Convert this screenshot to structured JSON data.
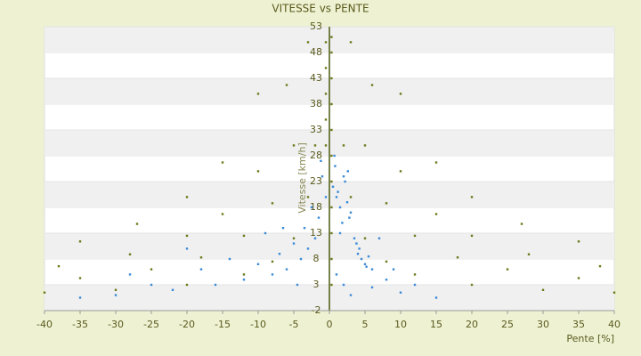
{
  "chart_data": {
    "type": "scatter",
    "title": "VITESSE vs PENTE",
    "x_label": "Pente [%]",
    "y_label": "Vitesse [km/h]",
    "xlim": [
      -40,
      40
    ],
    "xticks": [
      -40,
      -35,
      -30,
      -25,
      -20,
      -15,
      -10,
      -5,
      0,
      5,
      10,
      15,
      20,
      25,
      30,
      35,
      40
    ],
    "ylim": [
      -2,
      53
    ],
    "yticks": [
      -2,
      3,
      8,
      13,
      18,
      23,
      28,
      33,
      38,
      43,
      48,
      53
    ],
    "banded_grid": true,
    "series": [
      {
        "color": "#6b7a1a",
        "x": [
          0.3,
          0.3,
          0.3,
          0.3,
          0.3,
          0.3,
          0.3,
          0.3,
          0.3,
          0.3,
          0.3,
          -0.5,
          -0.5,
          -0.5,
          -0.5,
          -0.5,
          -2,
          2,
          -3,
          3,
          -5,
          5,
          -8,
          8,
          -12,
          12,
          -20,
          20,
          -30,
          30,
          -40,
          40,
          -3,
          3,
          -5,
          5,
          -8,
          8,
          -12,
          12,
          -18,
          18,
          -25,
          25,
          -35,
          35,
          -6,
          6,
          -10,
          10,
          -15,
          15,
          -20,
          20,
          -28,
          28,
          -38,
          38,
          -10,
          10,
          -15,
          15,
          -20,
          20,
          -27,
          27,
          -35,
          35
        ],
        "values": [
          3,
          8,
          13,
          18,
          23,
          28,
          33,
          38,
          43,
          48,
          51,
          50,
          45,
          40,
          35,
          30,
          30,
          30,
          20,
          20,
          12,
          12,
          7.5,
          7.5,
          5,
          5,
          3,
          3,
          2,
          2,
          1.5,
          1.5,
          50,
          50,
          30,
          30,
          18.8,
          18.8,
          12.5,
          12.5,
          8.3,
          8.3,
          6,
          6,
          4.3,
          4.3,
          41.7,
          41.7,
          25,
          25,
          16.7,
          16.7,
          12.5,
          12.5,
          8.9,
          8.9,
          6.6,
          6.6,
          40,
          40,
          26.7,
          26.7,
          20,
          20,
          14.8,
          14.8,
          11.4,
          11.4
        ]
      },
      {
        "color": "#3a8ad6",
        "x": [
          0.5,
          1,
          1.5,
          2,
          2.5,
          3,
          0.8,
          1.2,
          1.8,
          2.2,
          2.8,
          3.5,
          4,
          4.5,
          5,
          5.5,
          6,
          4.2,
          3.8,
          5.2,
          -0.5,
          -1,
          -1.5,
          -2,
          -2.5,
          -3,
          -3.5,
          -4,
          -5,
          -6,
          -7,
          -8,
          -9,
          -10,
          -12,
          -14,
          -16,
          -18,
          -20,
          -22,
          1,
          2,
          3,
          6,
          8,
          10,
          12,
          15,
          -25,
          -30,
          -35,
          -28,
          7,
          9,
          -1.2,
          0.7,
          2.6,
          1.5,
          -4.5,
          -6.5
        ],
        "values": [
          22,
          20,
          18,
          24,
          19,
          17,
          26,
          21,
          15,
          23,
          16,
          12,
          9,
          8,
          7,
          8.5,
          6,
          10,
          11,
          6.5,
          20,
          24,
          16,
          12,
          18,
          10,
          14,
          8,
          11,
          6,
          9,
          5,
          13,
          7,
          4,
          8,
          3,
          6,
          10,
          2,
          5,
          3,
          1,
          2.5,
          4,
          1.5,
          3,
          0.5,
          3,
          1,
          0.5,
          5,
          12,
          6,
          27,
          28,
          25,
          13,
          3,
          14
        ]
      }
    ]
  }
}
